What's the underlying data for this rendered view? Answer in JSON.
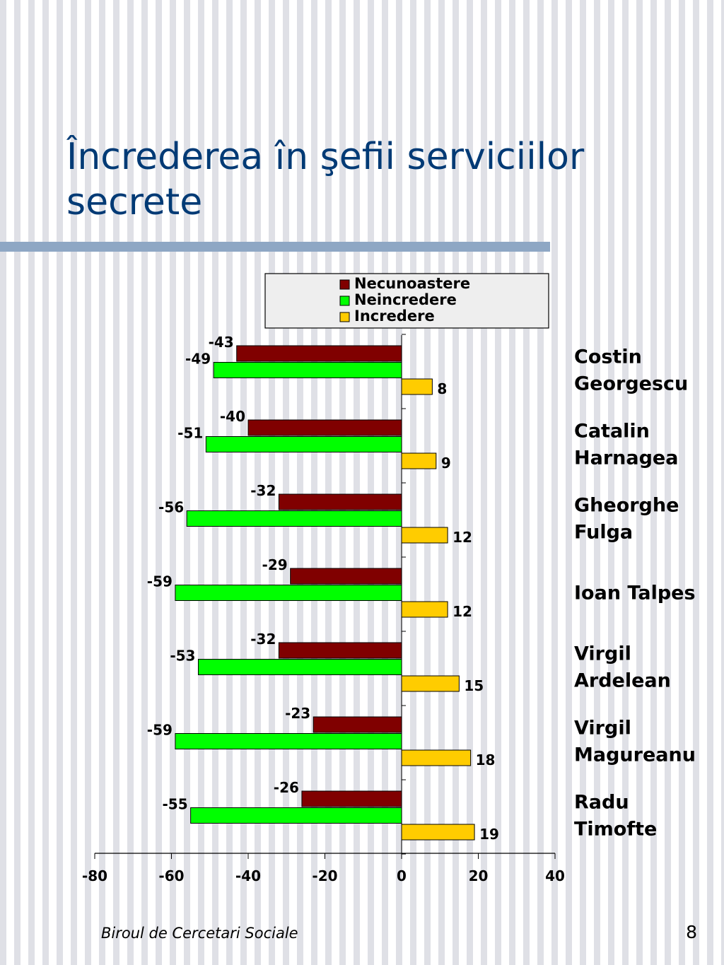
{
  "slide": {
    "title": "Încrederea în şefii serviciilor secrete",
    "footer": "Biroul de Cercetari Sociale",
    "page_number": "8"
  },
  "colors": {
    "Necunoastere": "#800000",
    "Neincredere": "#00ff00",
    "Incredere": "#ffcc00"
  },
  "chart_data": {
    "type": "bar",
    "orientation": "horizontal",
    "categories": [
      [
        "Costin",
        "Georgescu"
      ],
      [
        "Catalin",
        "Harnagea"
      ],
      [
        "Gheorghe",
        "Fulga"
      ],
      [
        "Ioan Talpes"
      ],
      [
        "Virgil",
        "Ardelean"
      ],
      [
        "Virgil",
        "Magureanu"
      ],
      [
        "Radu",
        "Timofte"
      ]
    ],
    "series": [
      {
        "name": "Necunoastere",
        "values": [
          -43,
          -40,
          -32,
          -29,
          -32,
          -23,
          -26
        ]
      },
      {
        "name": "Neincredere",
        "values": [
          -49,
          -51,
          -56,
          -59,
          -53,
          -59,
          -55
        ]
      },
      {
        "name": "Incredere",
        "values": [
          8,
          9,
          12,
          12,
          15,
          18,
          19
        ]
      }
    ],
    "xlim": [
      -80,
      40
    ],
    "xticks": [
      -80,
      -60,
      -40,
      -20,
      0,
      20,
      40
    ],
    "legend_position": "top",
    "grid": false
  }
}
